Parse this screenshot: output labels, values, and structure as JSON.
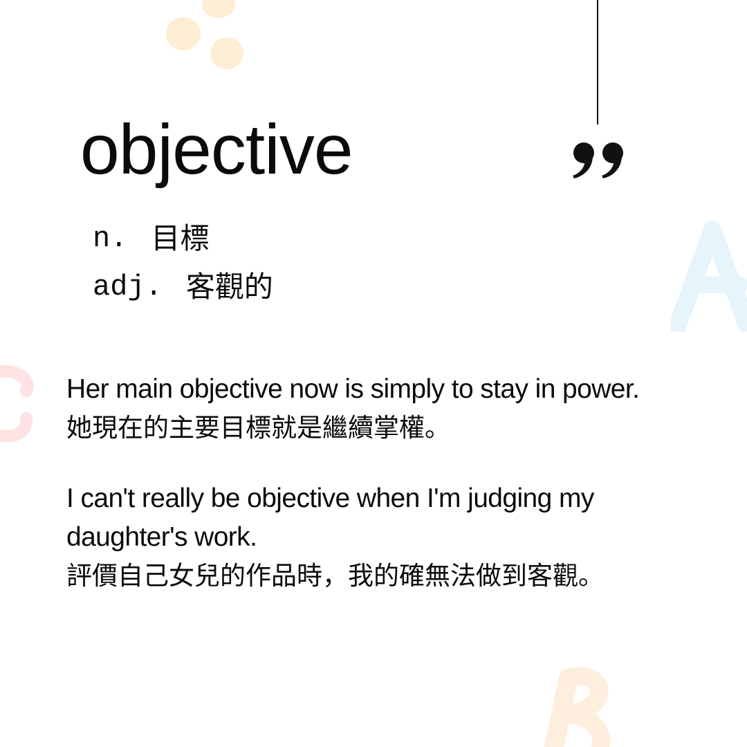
{
  "entry": {
    "word": "objective",
    "definitions": [
      {
        "pos": "n.",
        "meaning": "目標"
      },
      {
        "pos": "adj.",
        "meaning": "客觀的"
      }
    ]
  },
  "examples": [
    {
      "en": "Her main objective now is simply to stay in power.",
      "zh": "她現在的主要目標就是繼續掌權。"
    },
    {
      "en": "I can't really be objective when I'm judging my daughter's work.",
      "zh": "評價自己女兒的作品時，我的確無法做到客觀。"
    }
  ],
  "decorations": {
    "letters": [
      "A",
      "C",
      "B"
    ],
    "colors": {
      "dots": "#fdeed3",
      "letter_a": "#e6f4fb",
      "letter_c": "#fde3e3",
      "letter_b": "#fdeede",
      "ink": "#111111"
    },
    "icons": [
      "closing-quote-icon"
    ]
  }
}
